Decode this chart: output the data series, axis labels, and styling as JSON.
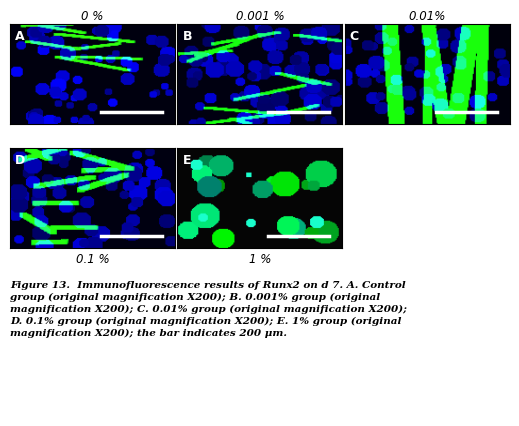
{
  "panel_labels": [
    "A",
    "B",
    "C",
    "D",
    "E"
  ],
  "top_labels": [
    "0 %",
    "0.001 %",
    "0.01%"
  ],
  "bottom_labels": [
    "0.1 %",
    "1 %"
  ],
  "caption": "Figure 13.  Immunofluorescence results of Runx2 on d 7. A. Control\ngroup (original magnification X200); B. 0.001% group (original\nmagnification X200); C. 0.01% group (original magnification X200);\nD. 0.1% group (original magnification X200); E. 1% group (original\nmagnification X200); the bar indicates 200 μm.",
  "bg_color": "#ffffff",
  "image_bg": "#000020",
  "cell_color_blue": "#1a1a6e",
  "cell_color_green": "#00cc44",
  "scale_bar_color": "#ffffff",
  "label_color": "#ffffff",
  "top_label_color": "#000000",
  "caption_color": "#000000"
}
